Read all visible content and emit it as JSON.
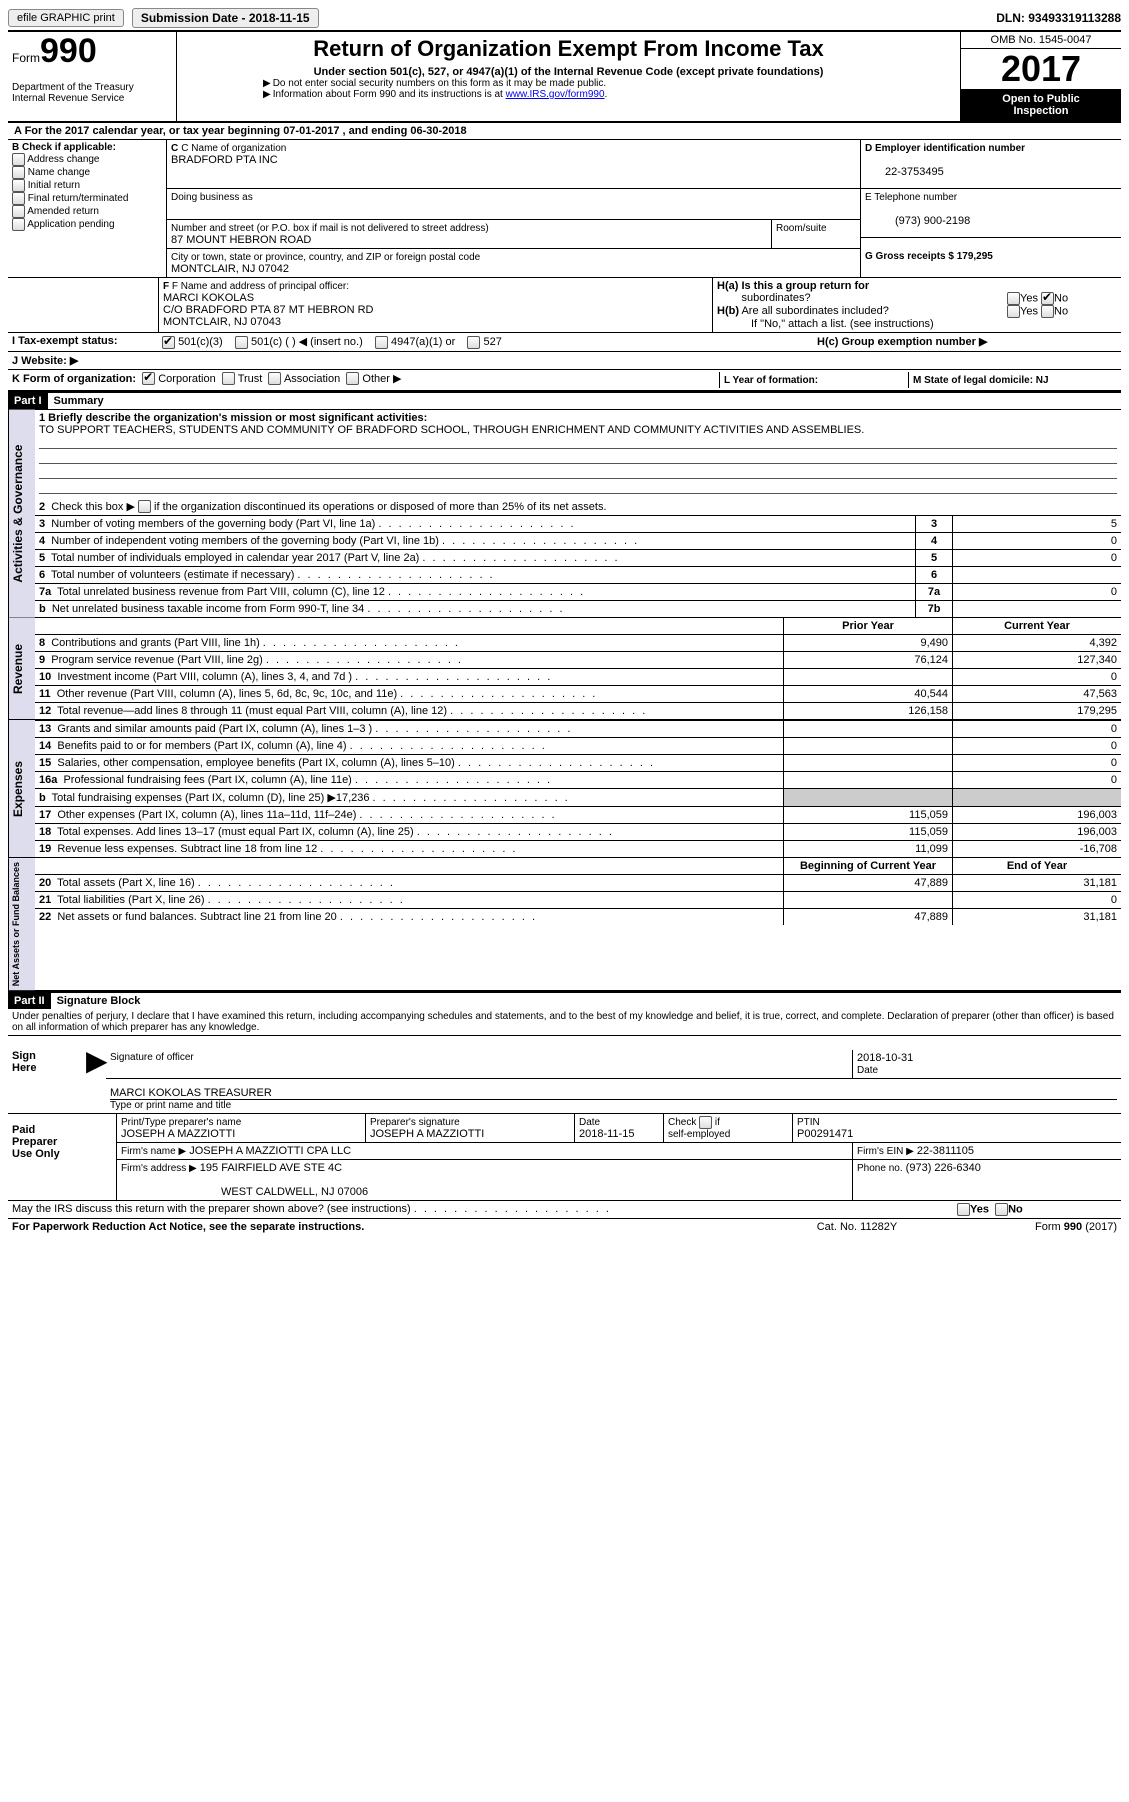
{
  "topbar": {
    "efile": "efile GRAPHIC print",
    "submission_label": "Submission Date - 2018-11-15",
    "dln": "DLN: 93493319113288"
  },
  "header": {
    "form_prefix": "Form",
    "form_number": "990",
    "dept1": "Department of the Treasury",
    "dept2": "Internal Revenue Service",
    "title": "Return of Organization Exempt From Income Tax",
    "subtitle": "Under section 501(c), 527, or 4947(a)(1) of the Internal Revenue Code (except private foundations)",
    "note1": "Do not enter social security numbers on this form as it may be made public.",
    "note2_pre": "Information about Form 990 and its instructions is at ",
    "note2_link": "www.IRS.gov/form990",
    "omb": "OMB No. 1545-0047",
    "year": "2017",
    "open1": "Open to Public",
    "open2": "Inspection"
  },
  "sectionA": {
    "text_a": "A  For the 2017 calendar year, or tax year beginning 07-01-2017   , and ending 06-30-2018"
  },
  "sectionB": {
    "label": "B Check if applicable:",
    "items": [
      "Address change",
      "Name change",
      "Initial return",
      "Final return/terminated",
      "Amended return",
      "Application pending"
    ]
  },
  "sectionC": {
    "label": "C Name of organization",
    "org": "BRADFORD PTA INC",
    "dba_label": "Doing business as",
    "addr_label": "Number and street (or P.O. box if mail is not delivered to street address)",
    "room_label": "Room/suite",
    "addr": "87 MOUNT HEBRON ROAD",
    "city_label": "City or town, state or province, country, and ZIP or foreign postal code",
    "city": "MONTCLAIR, NJ  07042"
  },
  "sectionD": {
    "label": "D Employer identification number",
    "value": "22-3753495"
  },
  "sectionE": {
    "label": "E Telephone number",
    "value": "(973) 900-2198"
  },
  "sectionG": {
    "label": "G Gross receipts $ 179,295"
  },
  "sectionF": {
    "label": "F Name and address of principal officer:",
    "line1": "MARCI KOKOLAS",
    "line2": "C/O BRADFORD PTA 87 MT HEBRON RD",
    "line3": "MONTCLAIR, NJ  07043"
  },
  "sectionH": {
    "a_label": "H(a)  Is this a group return for",
    "a_label2": "subordinates?",
    "b_label": "H(b)  Are all subordinates included?",
    "b_note": "If \"No,\" attach a list. (see instructions)",
    "c_label": "H(c)  Group exemption number ▶",
    "yes": "Yes",
    "no": "No"
  },
  "sectionI": {
    "label": "I  Tax-exempt status:",
    "opt1": "501(c)(3)",
    "opt2": "501(c) (  ) ◀ (insert no.)",
    "opt3": "4947(a)(1) or",
    "opt4": "527"
  },
  "sectionJ": {
    "label": "J  Website: ▶"
  },
  "sectionK": {
    "label": "K Form of organization:",
    "opts": [
      "Corporation",
      "Trust",
      "Association",
      "Other ▶"
    ],
    "l_label": "L Year of formation:",
    "m_label": "M State of legal domicile: NJ"
  },
  "part1": {
    "hdr": "Part I",
    "title": "Summary",
    "side_label": "Activities & Governance",
    "q1": "1 Briefly describe the organization's mission or most significant activities:",
    "mission": "TO SUPPORT TEACHERS, STUDENTS AND COMMUNITY OF BRADFORD SCHOOL, THROUGH ENRICHMENT AND COMMUNITY ACTIVITIES AND ASSEMBLIES.",
    "q2": "2  Check this box ▶        if the organization discontinued its operations or disposed of more than 25% of its net assets.",
    "lines": [
      {
        "n": "3",
        "t": "Number of voting members of the governing body (Part VI, line 1a)",
        "box": "3",
        "v": "5"
      },
      {
        "n": "4",
        "t": "Number of independent voting members of the governing body (Part VI, line 1b)",
        "box": "4",
        "v": "0"
      },
      {
        "n": "5",
        "t": "Total number of individuals employed in calendar year 2017 (Part V, line 2a)",
        "box": "5",
        "v": "0"
      },
      {
        "n": "6",
        "t": "Total number of volunteers (estimate if necessary)",
        "box": "6",
        "v": ""
      },
      {
        "n": "7a",
        "t": "Total unrelated business revenue from Part VIII, column (C), line 12",
        "box": "7a",
        "v": "0"
      },
      {
        "n": "b",
        "t": "Net unrelated business taxable income from Form 990-T, line 34",
        "box": "7b",
        "v": ""
      }
    ]
  },
  "revenue": {
    "side_label": "Revenue",
    "hdr_prior": "Prior Year",
    "hdr_curr": "Current Year",
    "rows": [
      {
        "n": "8",
        "t": "Contributions and grants (Part VIII, line 1h)",
        "p": "9,490",
        "c": "4,392"
      },
      {
        "n": "9",
        "t": "Program service revenue (Part VIII, line 2g)",
        "p": "76,124",
        "c": "127,340"
      },
      {
        "n": "10",
        "t": "Investment income (Part VIII, column (A), lines 3, 4, and 7d )",
        "p": "",
        "c": "0"
      },
      {
        "n": "11",
        "t": "Other revenue (Part VIII, column (A), lines 5, 6d, 8c, 9c, 10c, and 11e)",
        "p": "40,544",
        "c": "47,563"
      },
      {
        "n": "12",
        "t": "Total revenue—add lines 8 through 11 (must equal Part VIII, column (A), line 12)",
        "p": "126,158",
        "c": "179,295"
      }
    ]
  },
  "expenses": {
    "side_label": "Expenses",
    "rows": [
      {
        "n": "13",
        "t": "Grants and similar amounts paid (Part IX, column (A), lines 1–3 )",
        "p": "",
        "c": "0"
      },
      {
        "n": "14",
        "t": "Benefits paid to or for members (Part IX, column (A), line 4)",
        "p": "",
        "c": "0"
      },
      {
        "n": "15",
        "t": "Salaries, other compensation, employee benefits (Part IX, column (A), lines 5–10)",
        "p": "",
        "c": "0"
      },
      {
        "n": "16a",
        "t": "Professional fundraising fees (Part IX, column (A), line 11e)",
        "p": "",
        "c": "0"
      },
      {
        "n": "b",
        "t": "Total fundraising expenses (Part IX, column (D), line 25) ▶17,236",
        "p": "shade",
        "c": "shade"
      },
      {
        "n": "17",
        "t": "Other expenses (Part IX, column (A), lines 11a–11d, 11f–24e)",
        "p": "115,059",
        "c": "196,003"
      },
      {
        "n": "18",
        "t": "Total expenses. Add lines 13–17 (must equal Part IX, column (A), line 25)",
        "p": "115,059",
        "c": "196,003"
      },
      {
        "n": "19",
        "t": "Revenue less expenses. Subtract line 18 from line 12",
        "p": "11,099",
        "c": "-16,708"
      }
    ]
  },
  "netassets": {
    "side_label": "Net Assets or Fund Balances",
    "hdr_beg": "Beginning of Current Year",
    "hdr_end": "End of Year",
    "rows": [
      {
        "n": "20",
        "t": "Total assets (Part X, line 16)",
        "p": "47,889",
        "c": "31,181"
      },
      {
        "n": "21",
        "t": "Total liabilities (Part X, line 26)",
        "p": "",
        "c": "0"
      },
      {
        "n": "22",
        "t": "Net assets or fund balances. Subtract line 21 from line 20",
        "p": "47,889",
        "c": "31,181"
      }
    ]
  },
  "part2": {
    "hdr": "Part II",
    "title": "Signature Block",
    "decl": "Under penalties of perjury, I declare that I have examined this return, including accompanying schedules and statements, and to the best of my knowledge and belief, it is true, correct, and complete. Declaration of preparer (other than officer) is based on all information of which preparer has any knowledge."
  },
  "sign": {
    "label": "Sign Here",
    "sig_officer": "Signature of officer",
    "date_label": "Date",
    "date": "2018-10-31",
    "name_title": "MARCI KOKOLAS  TREASURER",
    "type_label": "Type or print name and title"
  },
  "preparer": {
    "label": "Paid Preparer Use Only",
    "name_label": "Print/Type preparer's name",
    "name": "JOSEPH A MAZZIOTTI",
    "sig_label": "Preparer's signature",
    "sig": "JOSEPH A MAZZIOTTI",
    "date_label": "Date",
    "date": "2018-11-15",
    "check_label": "Check        if self-employed",
    "ptin_label": "PTIN",
    "ptin": "P00291471",
    "firm_name_label": "Firm's name     ▶",
    "firm_name": "JOSEPH A MAZZIOTTI CPA LLC",
    "firm_ein_label": "Firm's EIN ▶",
    "firm_ein": "22-3811105",
    "firm_addr_label": "Firm's address ▶",
    "firm_addr1": "195 FAIRFIELD AVE STE 4C",
    "firm_addr2": "WEST CALDWELL, NJ  07006",
    "phone_label": "Phone no.",
    "phone": "(973) 226-6340"
  },
  "footer": {
    "discuss": "May the IRS discuss this return with the preparer shown above? (see instructions)",
    "yes": "Yes",
    "no": "No",
    "paperwork": "For Paperwork Reduction Act Notice, see the separate instructions.",
    "cat": "Cat. No. 11282Y",
    "form": "Form 990 (2017)"
  }
}
